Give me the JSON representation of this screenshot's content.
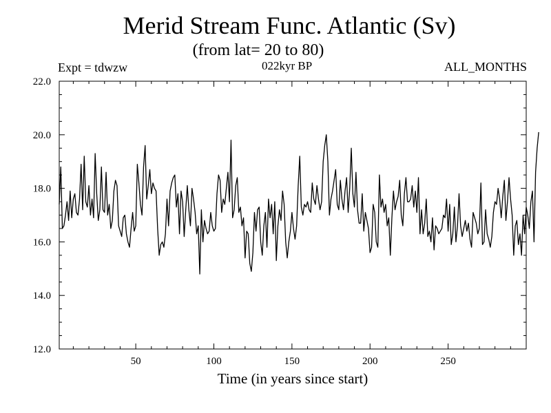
{
  "header": {
    "title": "Merid Stream Func. Atlantic (Sv)",
    "subtitle": "(from lat= 20 to 80)",
    "experiment": "Expt = tdwzw",
    "period": "022kyr BP",
    "months": "ALL_MONTHS"
  },
  "colors": {
    "line": "#000000",
    "background": "#ffffff"
  },
  "chart_data": {
    "type": "line",
    "title": "Merid Stream Func. Atlantic (Sv)",
    "subtitle": "(from lat= 20 to 80)",
    "xlabel": "Time (in years since start)",
    "ylabel": "",
    "xlim": [
      1,
      300
    ],
    "ylim": [
      12.0,
      22.0
    ],
    "x_ticks": [
      50,
      100,
      150,
      200,
      250
    ],
    "x_tick_labels": [
      "50",
      "100",
      "150",
      "200",
      "250"
    ],
    "y_ticks": [
      12,
      14,
      16,
      18,
      20,
      22
    ],
    "y_tick_labels": [
      "12.0",
      "14.0",
      "16.0",
      "18.0",
      "20.0",
      "22.0"
    ],
    "grid": false,
    "series": [
      {
        "x_start": 1,
        "x_step": 1,
        "values": [
          17.4,
          18.8,
          16.5,
          16.6,
          17.0,
          17.5,
          16.8,
          17.9,
          16.9,
          17.6,
          17.8,
          17.1,
          17.0,
          17.6,
          18.9,
          17.2,
          19.2,
          17.5,
          17.3,
          18.1,
          17.0,
          17.6,
          16.9,
          19.3,
          17.8,
          16.8,
          17.2,
          18.8,
          17.2,
          17.1,
          18.6,
          17.0,
          17.4,
          16.5,
          16.8,
          17.9,
          18.3,
          18.1,
          16.6,
          16.4,
          16.2,
          16.9,
          17.0,
          16.3,
          16.0,
          15.8,
          16.5,
          17.1,
          16.4,
          16.6,
          18.9,
          18.2,
          17.4,
          17.0,
          18.8,
          19.6,
          17.6,
          18.1,
          18.7,
          17.8,
          18.2,
          18.0,
          17.9,
          16.5,
          15.5,
          15.9,
          16.0,
          15.8,
          16.3,
          17.6,
          16.6,
          17.9,
          18.2,
          18.4,
          18.5,
          17.3,
          17.8,
          16.3,
          17.9,
          17.5,
          16.2,
          17.2,
          18.1,
          17.2,
          16.6,
          18.0,
          17.6,
          17.1,
          16.3,
          16.6,
          14.8,
          17.2,
          16.0,
          16.8,
          16.5,
          16.3,
          16.4,
          17.1,
          16.6,
          16.4,
          16.5,
          17.8,
          18.5,
          18.3,
          17.1,
          17.6,
          17.4,
          18.0,
          18.6,
          17.5,
          19.8,
          16.9,
          17.2,
          18.1,
          18.4,
          17.1,
          17.3,
          16.6,
          16.9,
          15.4,
          16.4,
          16.3,
          15.2,
          14.9,
          15.6,
          17.1,
          16.4,
          17.2,
          17.3,
          16.0,
          15.5,
          16.6,
          17.1,
          15.8,
          17.6,
          16.9,
          17.4,
          16.3,
          17.5,
          15.3,
          16.6,
          17.2,
          16.8,
          17.9,
          17.4,
          16.0,
          15.4,
          16.0,
          16.4,
          17.1,
          16.5,
          16.1,
          16.6,
          18.1,
          19.2,
          17.3,
          17.0,
          17.4,
          17.3,
          17.5,
          17.2,
          17.1,
          18.2,
          17.6,
          17.4,
          18.1,
          17.6,
          17.2,
          17.5,
          19.0,
          19.6,
          20.0,
          19.0,
          17.0,
          17.6,
          17.9,
          18.3,
          18.7,
          17.4,
          17.2,
          18.3,
          17.6,
          17.2,
          17.9,
          18.4,
          17.1,
          18.0,
          19.5,
          17.8,
          17.3,
          18.6,
          17.2,
          16.7,
          16.7,
          17.8,
          16.4,
          17.1,
          16.8,
          16.5,
          15.6,
          15.8,
          17.4,
          17.1,
          16.0,
          15.8,
          18.5,
          17.3,
          17.6,
          17.1,
          17.4,
          16.6,
          16.9,
          15.5,
          16.9,
          17.9,
          17.2,
          17.5,
          17.7,
          18.3,
          17.0,
          16.6,
          17.8,
          18.4,
          17.5,
          17.5,
          17.6,
          18.1,
          17.3,
          17.9,
          17.1,
          18.4,
          16.3,
          17.2,
          16.3,
          16.7,
          17.6,
          16.2,
          16.4,
          16.0,
          16.9,
          15.7,
          16.6,
          16.5,
          16.3,
          16.4,
          16.5,
          17.0,
          16.9,
          17.6,
          16.4,
          17.4,
          15.9,
          16.3,
          17.3,
          16.0,
          16.6,
          17.8,
          16.6,
          16.2,
          16.5,
          16.8,
          16.4,
          16.7,
          16.1,
          15.8,
          17.1,
          16.9,
          16.7,
          16.3,
          16.5,
          18.2,
          15.9,
          16.0,
          17.2,
          16.3,
          16.1,
          15.8,
          16.2,
          17.1,
          17.5,
          17.4,
          18.0,
          17.6,
          16.9,
          17.7,
          18.3,
          16.8,
          17.5,
          18.4,
          17.6,
          17.0,
          15.5,
          16.6,
          16.8,
          15.9,
          16.3,
          15.5,
          17.0,
          16.3,
          17.3,
          17.0,
          16.5,
          17.5,
          17.9,
          16.0,
          18.6,
          19.5,
          20.1
        ]
      }
    ]
  }
}
